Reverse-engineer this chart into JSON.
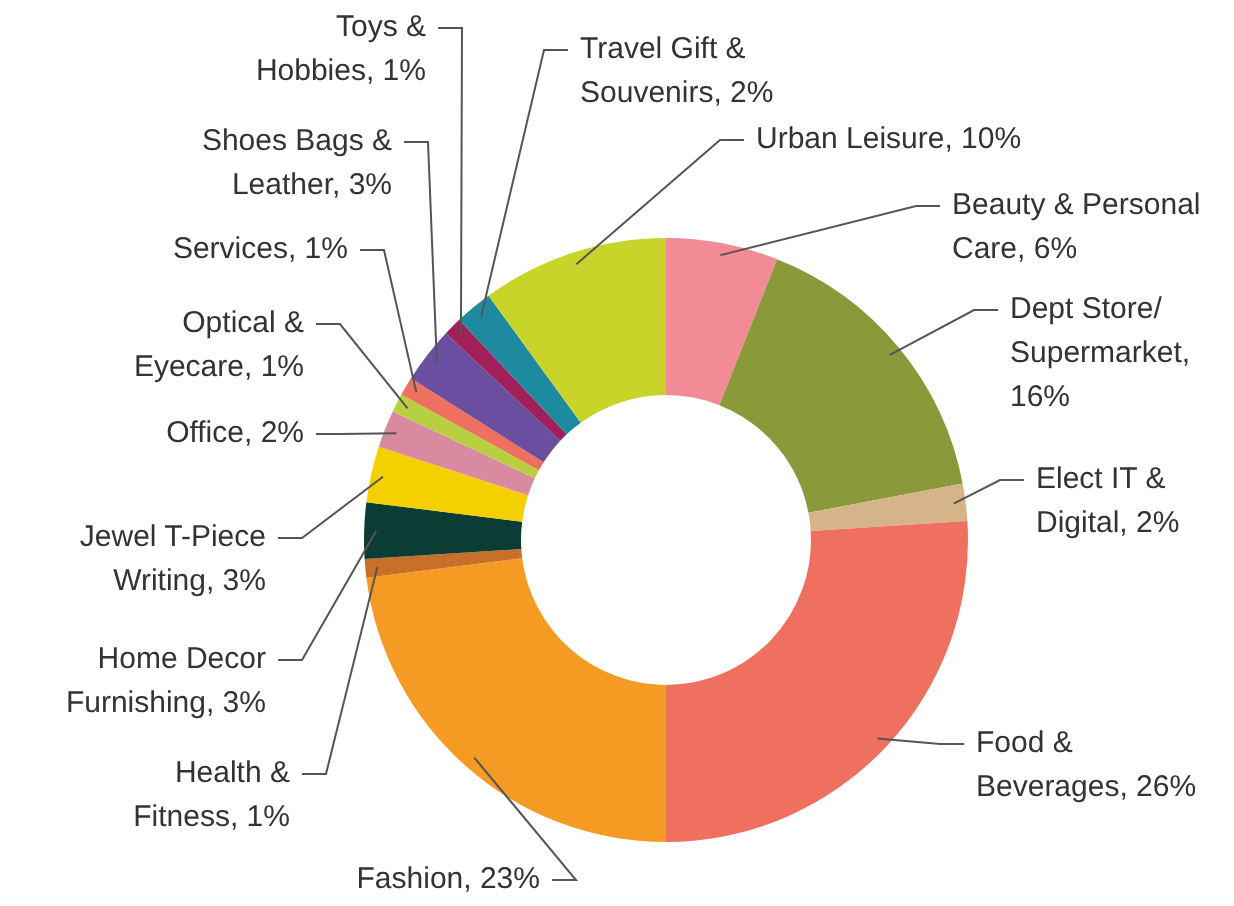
{
  "chart_data": {
    "type": "donut",
    "categories": [
      "Beauty & Personal Care",
      "Dept Store/ Supermarket",
      "Elect IT & Digital",
      "Food & Beverages",
      "Fashion",
      "Health & Fitness",
      "Home Decor Furnishing",
      "Jewel T-Piece Writing",
      "Office",
      "Optical & Eyecare",
      "Services",
      "Shoes Bags & Leather",
      "Toys & Hobbies",
      "Travel Gift & Souvenirs",
      "Urban Leisure"
    ],
    "values": [
      6,
      16,
      2,
      26,
      23,
      1,
      3,
      3,
      2,
      1,
      1,
      3,
      1,
      2,
      10
    ],
    "colors": [
      "#f28b95",
      "#8a9a3a",
      "#d6b48a",
      "#f07060",
      "#f59a23",
      "#c8702a",
      "#0b3d35",
      "#f5d000",
      "#d98aa0",
      "#b8d040",
      "#f07060",
      "#6a4fa0",
      "#a0205a",
      "#1e8aa0",
      "#c8d42a"
    ],
    "value_labels": [
      ", 6%",
      ", 16%",
      ", 2%",
      ", 26%",
      ", 23%",
      ", 1%",
      ", 3%",
      ", 3%",
      ", 2%",
      ", 1%",
      ", 1%",
      ", 3%",
      ", 1%",
      ", 2%",
      ", 10%"
    ],
    "legend": false
  }
}
